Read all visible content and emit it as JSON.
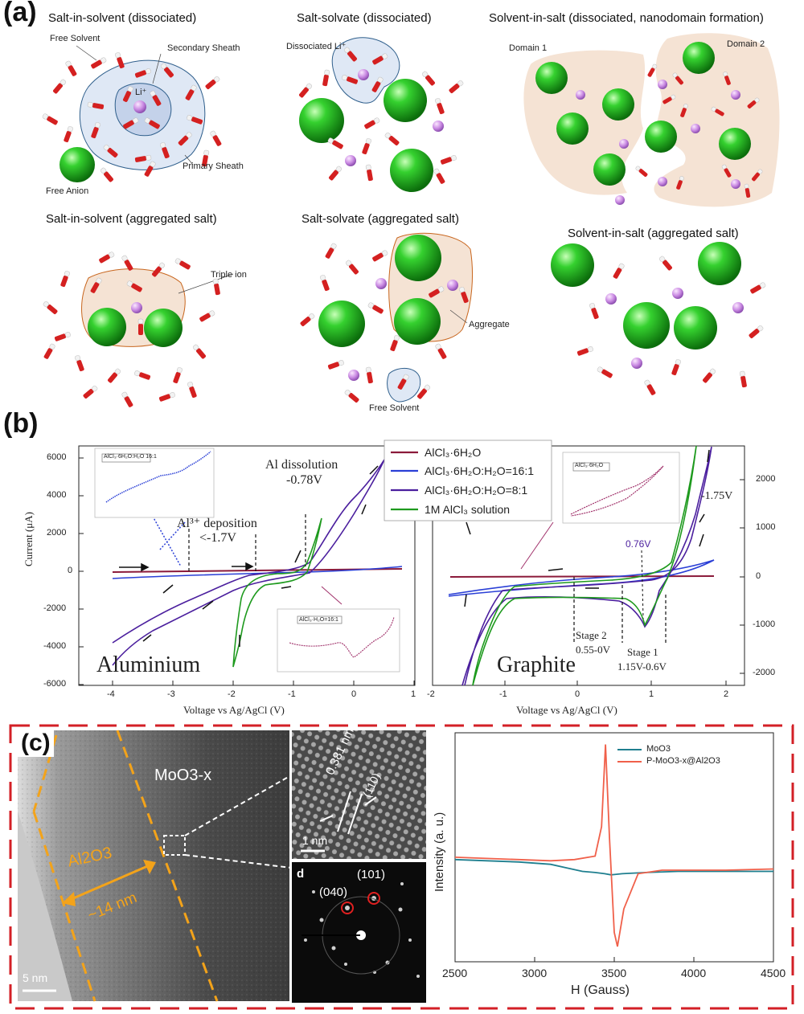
{
  "panel_a": {
    "letter": "(a)",
    "titles": [
      "Salt-in-solvent (dissociated)",
      "Salt-solvate (dissociated)",
      "Solvent-in-salt (dissociated, nanodomain formation)",
      "Salt-in-solvent (aggregated salt)",
      "Salt-solvate (aggregated salt)",
      "Solvent-in-salt (aggregated salt)"
    ],
    "labels": {
      "free_solvent": "Free Solvent",
      "secondary_sheath": "Secondary Sheath",
      "li_plus": "Li⁺",
      "primary_sheath": "Primary Sheath",
      "free_anion": "Free Anion",
      "dissociated_li": "Dissociated Li⁺",
      "domain1": "Domain 1",
      "domain2": "Domain 2",
      "triple_ion": "Triple ion",
      "aggregate": "Aggregate",
      "free_solvent2": "Free Solvent"
    }
  },
  "panel_b": {
    "letter": "(b)",
    "legend": [
      {
        "name": "AlCl₃·6H₂O",
        "color": "#8b1a3a"
      },
      {
        "name": "AlCl₃·6H₂O:H₂O=16:1",
        "color": "#2a3fd6"
      },
      {
        "name": "AlCl₃·6H₂O:H₂O=8:1",
        "color": "#4b1f9e"
      },
      {
        "name": "1M AlCl₃ solution",
        "color": "#1e9a1e"
      }
    ],
    "left": {
      "ylabel": "Current (μA)",
      "xlabel": "Voltage vs Ag/AgCl (V)",
      "yticks": [
        "6000",
        "4000",
        "2000",
        "0",
        "-2000",
        "-4000",
        "-6000"
      ],
      "xticks": [
        "-4",
        "-3",
        "-2",
        "-1",
        "0",
        "1"
      ],
      "label": "Aluminium",
      "ann_dissolution_1": "Al dissolution",
      "ann_dissolution_2": "-0.78V",
      "ann_deposition_1": "Al³⁺ deposition",
      "ann_deposition_2": "<-1.7V",
      "inset_title": "AlCl₃·6H₂O:H₂O 16:1",
      "inset2_title": "AlCl₃·H₂O=16:1"
    },
    "right": {
      "xlabel": "Voltage vs Ag/AgCl (V)",
      "yticks": [
        "2000",
        "1000",
        "0",
        "-1000",
        "-2000"
      ],
      "xticks": [
        "-2",
        "-1",
        "0",
        "1",
        "2"
      ],
      "label": "Graphite",
      "ann_175": "-1.75V",
      "ann_076": "0.76V",
      "stage2_1": "Stage 2",
      "stage2_2": "0.55-0V",
      "stage1_1": "Stage 1",
      "stage1_2": "1.15V-0.6V",
      "inset_title": "AlCl₃·6H₂O"
    }
  },
  "panel_c": {
    "letter": "(c)",
    "moo3x": "MoO3-x",
    "al2o3": "Al2O3",
    "thickness": "~14 nm",
    "scale_5nm": "5 nm",
    "d_spacing": "0.381 nm",
    "plane_110": "(110)",
    "scale_1nm": "1 nm",
    "d_label": "d",
    "plane_040": "(040)",
    "plane_101": "(101)"
  },
  "chart_data": [
    {
      "type": "line",
      "title": "",
      "xlabel": "H (Gauss)",
      "ylabel": "Intensity (a. u.)",
      "xlim": [
        2500,
        4500
      ],
      "xticks": [
        "2500",
        "3000",
        "3500",
        "4000",
        "4500"
      ],
      "series": [
        {
          "name": "MoO3",
          "color": "#1f7f8f",
          "x": [
            2500,
            2700,
            2900,
            3100,
            3200,
            3300,
            3380,
            3440,
            3480,
            3550,
            3700,
            3900,
            4100,
            4300,
            4500
          ],
          "y": [
            0.02,
            0.01,
            0.0,
            -0.02,
            -0.05,
            -0.08,
            -0.09,
            -0.1,
            -0.11,
            -0.1,
            -0.09,
            -0.08,
            -0.08,
            -0.08,
            -0.08
          ]
        },
        {
          "name": "P-MoO3-x@Al2O3",
          "color": "#f0604a",
          "x": [
            2500,
            2700,
            2900,
            3100,
            3250,
            3380,
            3420,
            3445,
            3470,
            3500,
            3520,
            3560,
            3650,
            3800,
            4000,
            4200,
            4500
          ],
          "y": [
            0.04,
            0.03,
            0.02,
            0.01,
            0.02,
            0.05,
            0.3,
            1.0,
            0.2,
            -0.6,
            -0.72,
            -0.4,
            -0.1,
            -0.07,
            -0.07,
            -0.07,
            -0.06
          ]
        }
      ]
    }
  ]
}
